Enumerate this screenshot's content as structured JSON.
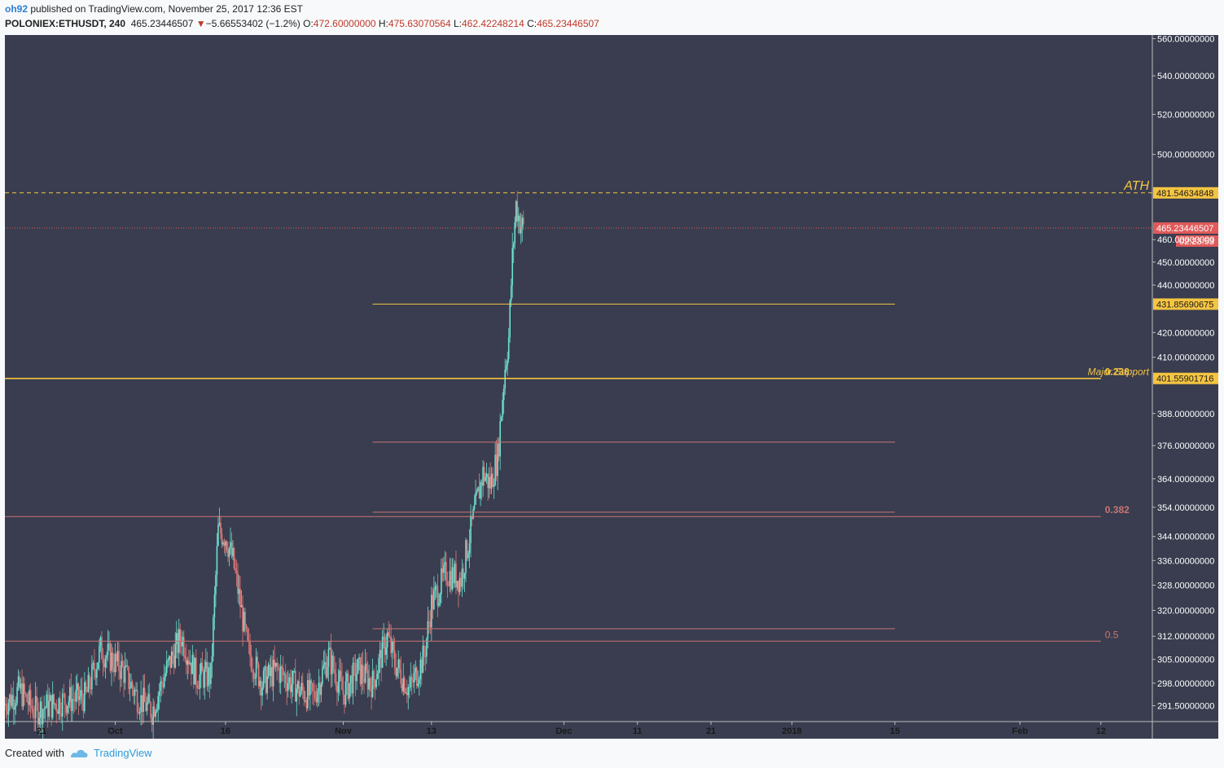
{
  "header": {
    "author": "oh92",
    "published_text": " published on TradingView.com, November 25, 2017 12:36 EST",
    "symbol": "POLONIEX:ETHUSDT, 240",
    "last": "465.23446507",
    "change_arrow": "▼",
    "change": "−5.66553402 (−1.2%)",
    "o_label": "O:",
    "o_value": "472.60000000",
    "h_label": "H:",
    "h_value": "475.63070564",
    "l_label": "L:",
    "l_value": "462.42248214",
    "c_label": "C:",
    "c_value": "465.23446507"
  },
  "footer": {
    "created_with": "Created with",
    "brand": "TradingView"
  },
  "colors": {
    "bg": "#393d4f",
    "axis_bg": "#393d4f",
    "up": "#6ee0d0",
    "down": "#e07a7a",
    "fib_yellow": "#f5c542",
    "fib_red": "#c97474",
    "last_price": "#e05a5a"
  },
  "chart_data": {
    "type": "candlestick",
    "symbol": "POLONIEX:ETHUSDT",
    "interval": "240",
    "x_range": [
      "2017-09-16",
      "2018-02-19"
    ],
    "y_range": [
      287,
      562
    ],
    "y_scale": "log",
    "y_ticks": [
      "560.00000000",
      "540.00000000",
      "520.00000000",
      "500.00000000",
      "460.00000000",
      "450.00000000",
      "440.00000000",
      "420.00000000",
      "410.00000000",
      "388.00000000",
      "376.00000000",
      "364.00000000",
      "354.00000000",
      "344.00000000",
      "336.00000000",
      "328.00000000",
      "320.00000000",
      "312.00000000",
      "305.00000000",
      "298.00000000",
      "291.50000000"
    ],
    "x_ticks": [
      {
        "date": "2017-09-21",
        "label": "21"
      },
      {
        "date": "2017-10-01",
        "label": "Oct"
      },
      {
        "date": "2017-10-16",
        "label": "16"
      },
      {
        "date": "2017-11-01",
        "label": "Nov"
      },
      {
        "date": "2017-11-13",
        "label": "13"
      },
      {
        "date": "2017-12-01",
        "label": "Dec"
      },
      {
        "date": "2017-12-11",
        "label": "11"
      },
      {
        "date": "2017-12-21",
        "label": "21"
      },
      {
        "date": "2018-01-01",
        "label": "2018"
      },
      {
        "date": "2018-01-15",
        "label": "15"
      },
      {
        "date": "2018-02-01",
        "label": "Feb"
      },
      {
        "date": "2018-02-12",
        "label": "12"
      }
    ],
    "price_path": [
      [
        "2017-09-16",
        292
      ],
      [
        "2017-09-18",
        296
      ],
      [
        "2017-09-20",
        290
      ],
      [
        "2017-09-24",
        293
      ],
      [
        "2017-09-27",
        294
      ],
      [
        "2017-09-29",
        308
      ],
      [
        "2017-10-02",
        302
      ],
      [
        "2017-10-04",
        294
      ],
      [
        "2017-10-06",
        290
      ],
      [
        "2017-10-08",
        302
      ],
      [
        "2017-10-10",
        312
      ],
      [
        "2017-10-12",
        300
      ],
      [
        "2017-10-14",
        300
      ],
      [
        "2017-10-15",
        346
      ],
      [
        "2017-10-16",
        344
      ],
      [
        "2017-10-17",
        336
      ],
      [
        "2017-10-18",
        322
      ],
      [
        "2017-10-19",
        308
      ],
      [
        "2017-10-21",
        298
      ],
      [
        "2017-10-23",
        302
      ],
      [
        "2017-10-26",
        296
      ],
      [
        "2017-10-28",
        294
      ],
      [
        "2017-10-30",
        306
      ],
      [
        "2017-11-01",
        295
      ],
      [
        "2017-11-03",
        302
      ],
      [
        "2017-11-05",
        298
      ],
      [
        "2017-11-07",
        312
      ],
      [
        "2017-11-08",
        304
      ],
      [
        "2017-11-10",
        296
      ],
      [
        "2017-11-12",
        306
      ],
      [
        "2017-11-13",
        322
      ],
      [
        "2017-11-15",
        332
      ],
      [
        "2017-11-17",
        330
      ],
      [
        "2017-11-19",
        354
      ],
      [
        "2017-11-20",
        366
      ],
      [
        "2017-11-21",
        362
      ],
      [
        "2017-11-22",
        372
      ],
      [
        "2017-11-23",
        406
      ],
      [
        "2017-11-23T12:00",
        418
      ],
      [
        "2017-11-24",
        452
      ],
      [
        "2017-11-24T12:00",
        476
      ],
      [
        "2017-11-25",
        468
      ],
      [
        "2017-11-25T12:00",
        465
      ]
    ],
    "last_price": {
      "value": 465.23446507,
      "label": "465.23446507",
      "countdown": "02:23:53"
    },
    "horizontal_lines": [
      {
        "value": 481.54634848,
        "label": "481.54634848",
        "style": "dashed",
        "color": "#f5c542",
        "annotation": "ATH"
      },
      {
        "value": 465.23446507,
        "label": "",
        "style": "dotted",
        "color": "#e05a5a"
      },
      {
        "value": 431.85690675,
        "label": "431.85690675",
        "style": "solid",
        "color": "#f5c542",
        "x_from": "2017-11-05",
        "x_to": "2018-01-15"
      },
      {
        "value": 401.55901716,
        "label": "401.55901716",
        "style": "solid",
        "color": "#f5c542",
        "annotation": "Major Support",
        "fib": "0.236",
        "x_to": "2018-02-12"
      },
      {
        "value": 377.3,
        "label": "",
        "style": "solid",
        "color": "#c97474",
        "x_from": "2017-11-05",
        "x_to": "2018-01-15"
      },
      {
        "value": 352.3,
        "label": "",
        "style": "solid",
        "color": "#c97474",
        "x_from": "2017-11-05",
        "x_to": "2018-01-15"
      },
      {
        "value": 350.8,
        "label": "",
        "style": "solid",
        "color": "#c97474",
        "fib": "0.382",
        "x_to": "2018-02-12"
      },
      {
        "value": 314.3,
        "label": "",
        "style": "solid",
        "color": "#c97474",
        "x_from": "2017-11-05",
        "x_to": "2018-01-15"
      },
      {
        "value": 310.5,
        "label": "",
        "style": "solid",
        "color": "#c97474",
        "fib": "0.5",
        "x_to": "2018-02-12"
      }
    ]
  }
}
